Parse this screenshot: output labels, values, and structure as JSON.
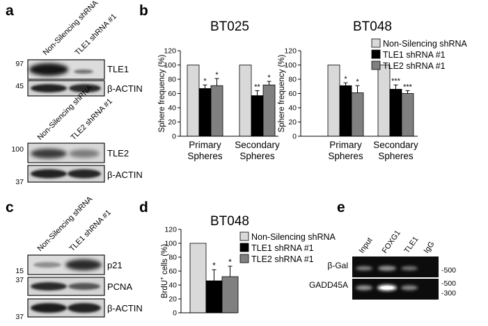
{
  "colors": {
    "nonsil": "#d9d9d9",
    "tle1": "#000000",
    "tle2": "#808080"
  },
  "panel_a": {
    "letter": "a",
    "blot1": {
      "lanes": [
        "Non-Silencing shRNA",
        "TLE1 shRNA #1"
      ],
      "rows": [
        {
          "marker": "97",
          "label": "TLE1"
        },
        {
          "marker": "45",
          "label": "β-ACTIN"
        }
      ]
    },
    "blot2": {
      "lanes": [
        "Non-Silencing shRNA",
        "TLE2 shRNA #1"
      ],
      "rows": [
        {
          "marker": "100",
          "label": "TLE2"
        },
        {
          "marker": "37",
          "label": "β-ACTIN"
        }
      ]
    }
  },
  "panel_b": {
    "letter": "b"
  },
  "panel_c": {
    "letter": "c",
    "lanes": [
      "Non-Silencing shRNA",
      "TLE1 shRNA #1"
    ],
    "rows": [
      {
        "marker": "15",
        "label": "p21"
      },
      {
        "marker": "37",
        "label": "PCNA"
      },
      {
        "marker": "37",
        "label": "β-ACTIN"
      }
    ]
  },
  "panel_d": {
    "letter": "d"
  },
  "panel_e": {
    "letter": "e",
    "lanes": [
      "Input",
      "FOXG1",
      "TLE1",
      "IgG"
    ],
    "rows": [
      {
        "label": "β-Gal",
        "markers": [
          "-500"
        ]
      },
      {
        "label": "GADD45A",
        "markers": [
          "-500",
          "-300"
        ]
      }
    ]
  },
  "chart_data": [
    {
      "type": "bar",
      "title": "BT025",
      "ylabel": "Sphere frequency (%)",
      "ylim": [
        0,
        120
      ],
      "yticks": [
        "0",
        "20",
        "40",
        "60",
        "80",
        "100",
        "120"
      ],
      "categories": [
        "Primary Spheres",
        "Secondary Spheres"
      ],
      "series": [
        {
          "values": [
            100,
            100
          ],
          "errors": [
            0,
            0
          ],
          "sig": [
            "",
            ""
          ]
        },
        {
          "values": [
            67,
            57
          ],
          "errors": [
            5,
            7
          ],
          "sig": [
            "*",
            "**"
          ]
        },
        {
          "values": [
            71,
            72
          ],
          "errors": [
            10,
            5
          ],
          "sig": [
            "*",
            "*"
          ]
        }
      ]
    },
    {
      "type": "bar",
      "title": "BT048",
      "ylabel": "Sphere frequency (%)",
      "ylim": [
        0,
        120
      ],
      "yticks": [
        "0",
        "20",
        "40",
        "60",
        "80",
        "100",
        "120"
      ],
      "categories": [
        "Primary Spheres",
        "Secondary Spheres"
      ],
      "legend": [
        "Non-Silencing shRNA",
        "TLE1 shRNA #1",
        "TLE2 shRNA #1"
      ],
      "series": [
        {
          "name": "Non-Silencing shRNA",
          "values": [
            100,
            100
          ],
          "errors": [
            0,
            0
          ],
          "sig": [
            "",
            ""
          ]
        },
        {
          "name": "TLE1 shRNA #1",
          "values": [
            71,
            66
          ],
          "errors": [
            4,
            6
          ],
          "sig": [
            "*",
            "***"
          ]
        },
        {
          "name": "TLE2 shRNA #1",
          "values": [
            61,
            60
          ],
          "errors": [
            10,
            4
          ],
          "sig": [
            "*",
            "***"
          ]
        }
      ]
    },
    {
      "type": "bar",
      "title": "BT048",
      "ylabel_main": "BrdU",
      "ylabel_sup": "+",
      "ylabel_rest": " cells (%)",
      "ylim": [
        0,
        120
      ],
      "yticks": [
        "0",
        "20",
        "40",
        "60",
        "80",
        "100",
        "120"
      ],
      "categories": [
        ""
      ],
      "legend": [
        "Non-Silencing shRNA",
        "TLE1 shRNA #1",
        "TLE2 shRNA #1"
      ],
      "series": [
        {
          "name": "Non-Silencing shRNA",
          "values": [
            100
          ],
          "errors": [
            0
          ],
          "sig": [
            ""
          ]
        },
        {
          "name": "TLE1 shRNA #1",
          "values": [
            46
          ],
          "errors": [
            16
          ],
          "sig": [
            "*"
          ]
        },
        {
          "name": "TLE2 shRNA #1",
          "values": [
            52
          ],
          "errors": [
            15
          ],
          "sig": [
            "*"
          ]
        }
      ]
    }
  ]
}
